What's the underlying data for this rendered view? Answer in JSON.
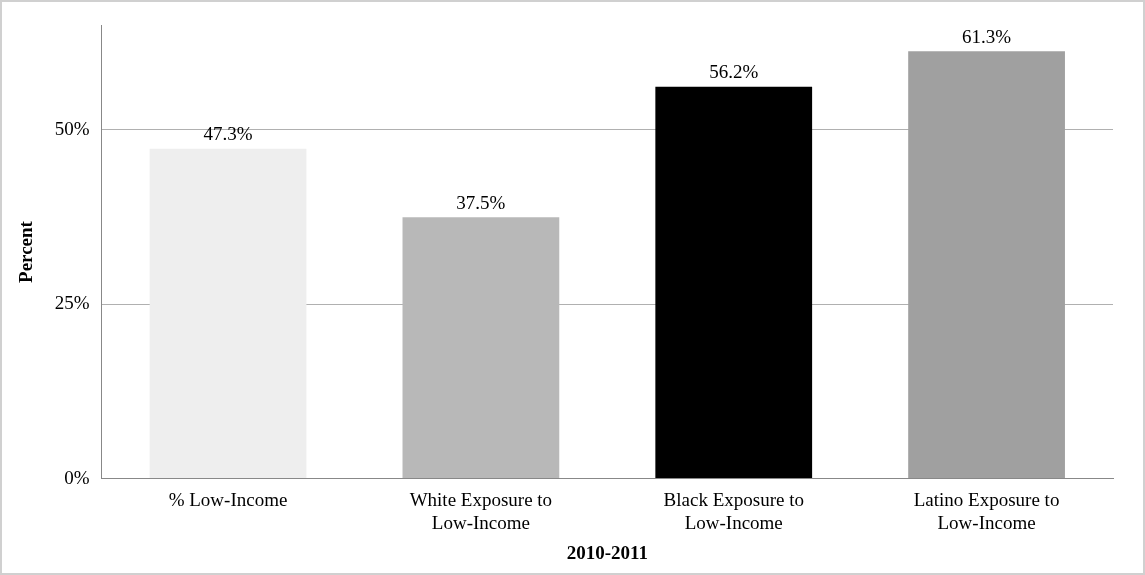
{
  "chart_data": {
    "type": "bar",
    "xlabel": "2010-2011",
    "ylabel": "Percent",
    "categories": [
      "% Low-Income",
      "White Exposure to Low-Income",
      "Black Exposure to Low-Income",
      "Latino Exposure to Low-Income"
    ],
    "values": [
      47.3,
      37.5,
      56.2,
      61.3
    ],
    "colors": [
      "#eeeeee",
      "#b8b8b8",
      "#000000",
      "#a0a0a0"
    ],
    "value_labels": [
      "47.3%",
      "37.5%",
      "56.2%",
      "61.3%"
    ],
    "ylim": [
      0,
      65
    ],
    "yticks": [
      {
        "value": 0,
        "label": "0%"
      },
      {
        "value": 25,
        "label": "25%"
      },
      {
        "value": 50,
        "label": "50%"
      }
    ],
    "grid": "y",
    "legend": false
  }
}
